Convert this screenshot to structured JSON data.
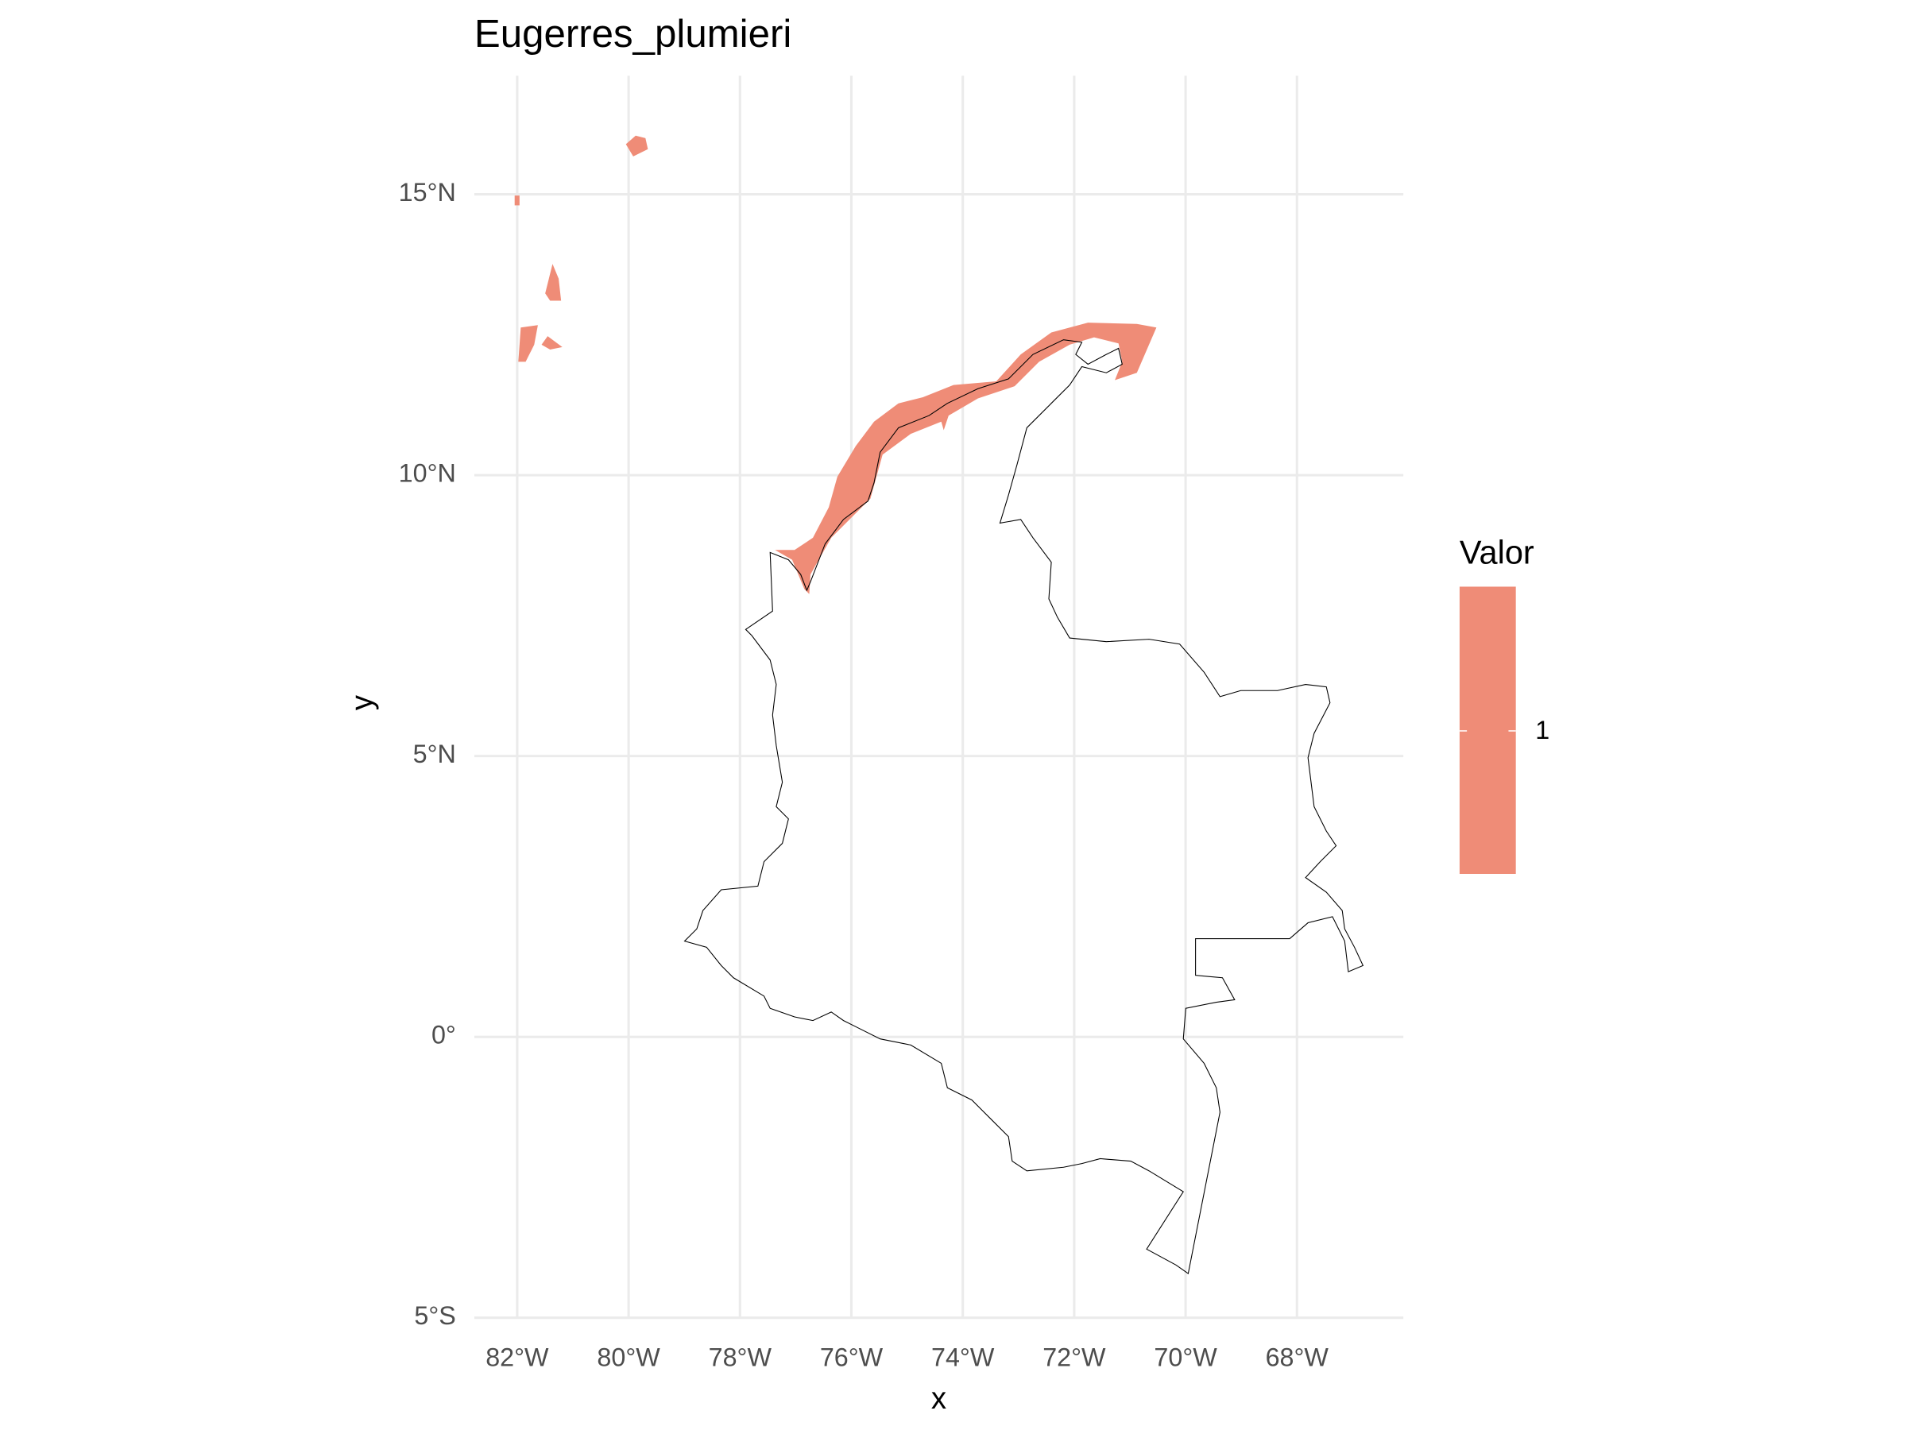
{
  "chart_data": {
    "type": "map",
    "title": "Eugerres_plumieri",
    "x_label": "x",
    "y_label": "y",
    "xlim": [
      -82.77,
      -66.09
    ],
    "ylim": [
      -5.04,
      17.11
    ],
    "xticks": [
      {
        "value": -82,
        "label": "82°W"
      },
      {
        "value": -80,
        "label": "80°W"
      },
      {
        "value": -78,
        "label": "78°W"
      },
      {
        "value": -76,
        "label": "76°W"
      },
      {
        "value": -74,
        "label": "74°W"
      },
      {
        "value": -72,
        "label": "72°W"
      },
      {
        "value": -70,
        "label": "70°W"
      },
      {
        "value": -68,
        "label": "68°W"
      }
    ],
    "yticks": [
      {
        "value": -5,
        "label": "5°S"
      },
      {
        "value": 0,
        "label": "0°"
      },
      {
        "value": 5,
        "label": "5°N"
      },
      {
        "value": 10,
        "label": "10°N"
      },
      {
        "value": 15,
        "label": "15°N"
      }
    ],
    "grid": true,
    "legend": {
      "title": "Valor",
      "breaks": [
        1
      ],
      "color": "#ef8c77"
    }
  }
}
